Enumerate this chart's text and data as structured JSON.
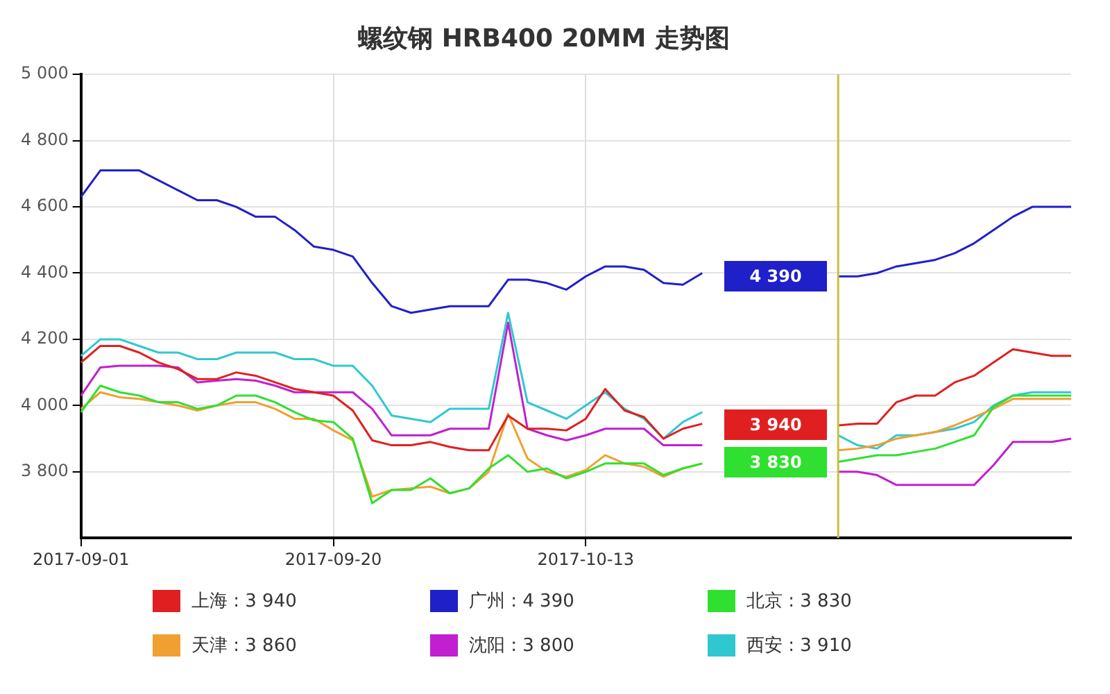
{
  "chart_data": {
    "type": "line",
    "title": "螺纹钢 HRB400 20MM 走势图",
    "categories": [
      "2017-09-01",
      null,
      null,
      null,
      null,
      null,
      null,
      null,
      null,
      null,
      null,
      null,
      null,
      "2017-09-20",
      null,
      null,
      null,
      null,
      null,
      null,
      null,
      null,
      null,
      null,
      null,
      null,
      "2017-10-13",
      null,
      null,
      null,
      null,
      null,
      null,
      null,
      null,
      null,
      null,
      null,
      null,
      null,
      null,
      null,
      null,
      null,
      null,
      null,
      null,
      null,
      null,
      null,
      null,
      null
    ],
    "series": [
      {
        "name": "上海 : 3 940",
        "color": "#e02020",
        "values": [
          4130,
          4180,
          4180,
          4160,
          4130,
          4110,
          4080,
          4080,
          4100,
          4090,
          4070,
          4050,
          4040,
          4030,
          3985,
          3895,
          3880,
          3880,
          3890,
          3875,
          3865,
          3865,
          3970,
          3930,
          3930,
          3925,
          3960,
          4050,
          3985,
          3965,
          3900,
          3930,
          3945,
          null,
          null,
          null,
          null,
          null,
          null,
          3940,
          3945,
          3945,
          4010,
          4030,
          4030,
          4070,
          4090,
          4130,
          4170,
          4160,
          4150,
          4150
        ]
      },
      {
        "name": "广州 : 4 390",
        "color": "#2020c8",
        "values": [
          4630,
          4710,
          4710,
          4710,
          4680,
          4650,
          4620,
          4620,
          4600,
          4570,
          4570,
          4530,
          4480,
          4470,
          4450,
          4370,
          4300,
          4280,
          4290,
          4300,
          4300,
          4300,
          4380,
          4380,
          4370,
          4350,
          4390,
          4420,
          4420,
          4410,
          4370,
          4365,
          4400,
          null,
          null,
          null,
          null,
          null,
          null,
          4390,
          4390,
          4400,
          4420,
          4430,
          4440,
          4460,
          4490,
          4530,
          4570,
          4600,
          4600,
          4600
        ]
      },
      {
        "name": "北京 : 3 830",
        "color": "#30e030",
        "values": [
          3980,
          4060,
          4040,
          4030,
          4010,
          4010,
          3990,
          4000,
          4030,
          4030,
          4010,
          3980,
          3955,
          3950,
          3900,
          3705,
          3745,
          3745,
          3780,
          3735,
          3750,
          3810,
          3850,
          3800,
          3810,
          3780,
          3800,
          3825,
          3825,
          3825,
          3790,
          3810,
          3825,
          null,
          null,
          null,
          null,
          null,
          null,
          3830,
          3840,
          3850,
          3850,
          3860,
          3870,
          3890,
          3910,
          3995,
          4030,
          4030,
          4030,
          4030
        ]
      },
      {
        "name": "天津 : 3 860",
        "color": "#f0a030",
        "values": [
          3990,
          4040,
          4025,
          4020,
          4010,
          4000,
          3985,
          4000,
          4010,
          4010,
          3990,
          3960,
          3960,
          3925,
          3895,
          3725,
          3745,
          3750,
          3755,
          3735,
          3750,
          3800,
          3975,
          3840,
          3800,
          3785,
          3805,
          3850,
          3825,
          3815,
          3785,
          3810,
          3825,
          null,
          null,
          null,
          null,
          null,
          null,
          3865,
          3870,
          3880,
          3900,
          3910,
          3920,
          3940,
          3965,
          3990,
          4020,
          4020,
          4020,
          4020
        ]
      },
      {
        "name": "沈阳 : 3 800",
        "color": "#c020d0",
        "values": [
          4030,
          4115,
          4120,
          4120,
          4120,
          4115,
          4070,
          4075,
          4080,
          4075,
          4060,
          4040,
          4040,
          4040,
          4040,
          3990,
          3910,
          3910,
          3910,
          3930,
          3930,
          3930,
          4250,
          3930,
          3910,
          3895,
          3910,
          3930,
          3930,
          3930,
          3880,
          3880,
          3880,
          null,
          null,
          null,
          null,
          null,
          null,
          3800,
          3800,
          3790,
          3760,
          3760,
          3760,
          3760,
          3760,
          3820,
          3890,
          3890,
          3890,
          3900
        ]
      },
      {
        "name": "西安 : 3 910",
        "color": "#30c8d0",
        "values": [
          4150,
          4200,
          4200,
          4180,
          4160,
          4160,
          4140,
          4140,
          4160,
          4160,
          4160,
          4140,
          4140,
          4120,
          4120,
          4060,
          3970,
          3960,
          3950,
          3990,
          3990,
          3990,
          4280,
          4010,
          3985,
          3960,
          4000,
          4040,
          3990,
          3960,
          3900,
          3950,
          3980,
          null,
          null,
          null,
          null,
          null,
          null,
          3910,
          3880,
          3870,
          3910,
          3910,
          3920,
          3930,
          3950,
          4000,
          4030,
          4040,
          4040,
          4040
        ]
      }
    ],
    "ylim": [
      3600,
      5000
    ],
    "yticks": [
      {
        "value": 3800,
        "label": "3 800"
      },
      {
        "value": 4000,
        "label": "4 000"
      },
      {
        "value": 4200,
        "label": "4 200"
      },
      {
        "value": 4400,
        "label": "4 400"
      },
      {
        "value": 4600,
        "label": "4 600"
      },
      {
        "value": 4800,
        "label": "4 800"
      },
      {
        "value": 5000,
        "label": "5 000"
      }
    ],
    "grid": true,
    "legend": "bottom",
    "marker": "none",
    "line_style": "solid",
    "annotations": [
      "4 390",
      "3 940",
      "3 830"
    ]
  }
}
